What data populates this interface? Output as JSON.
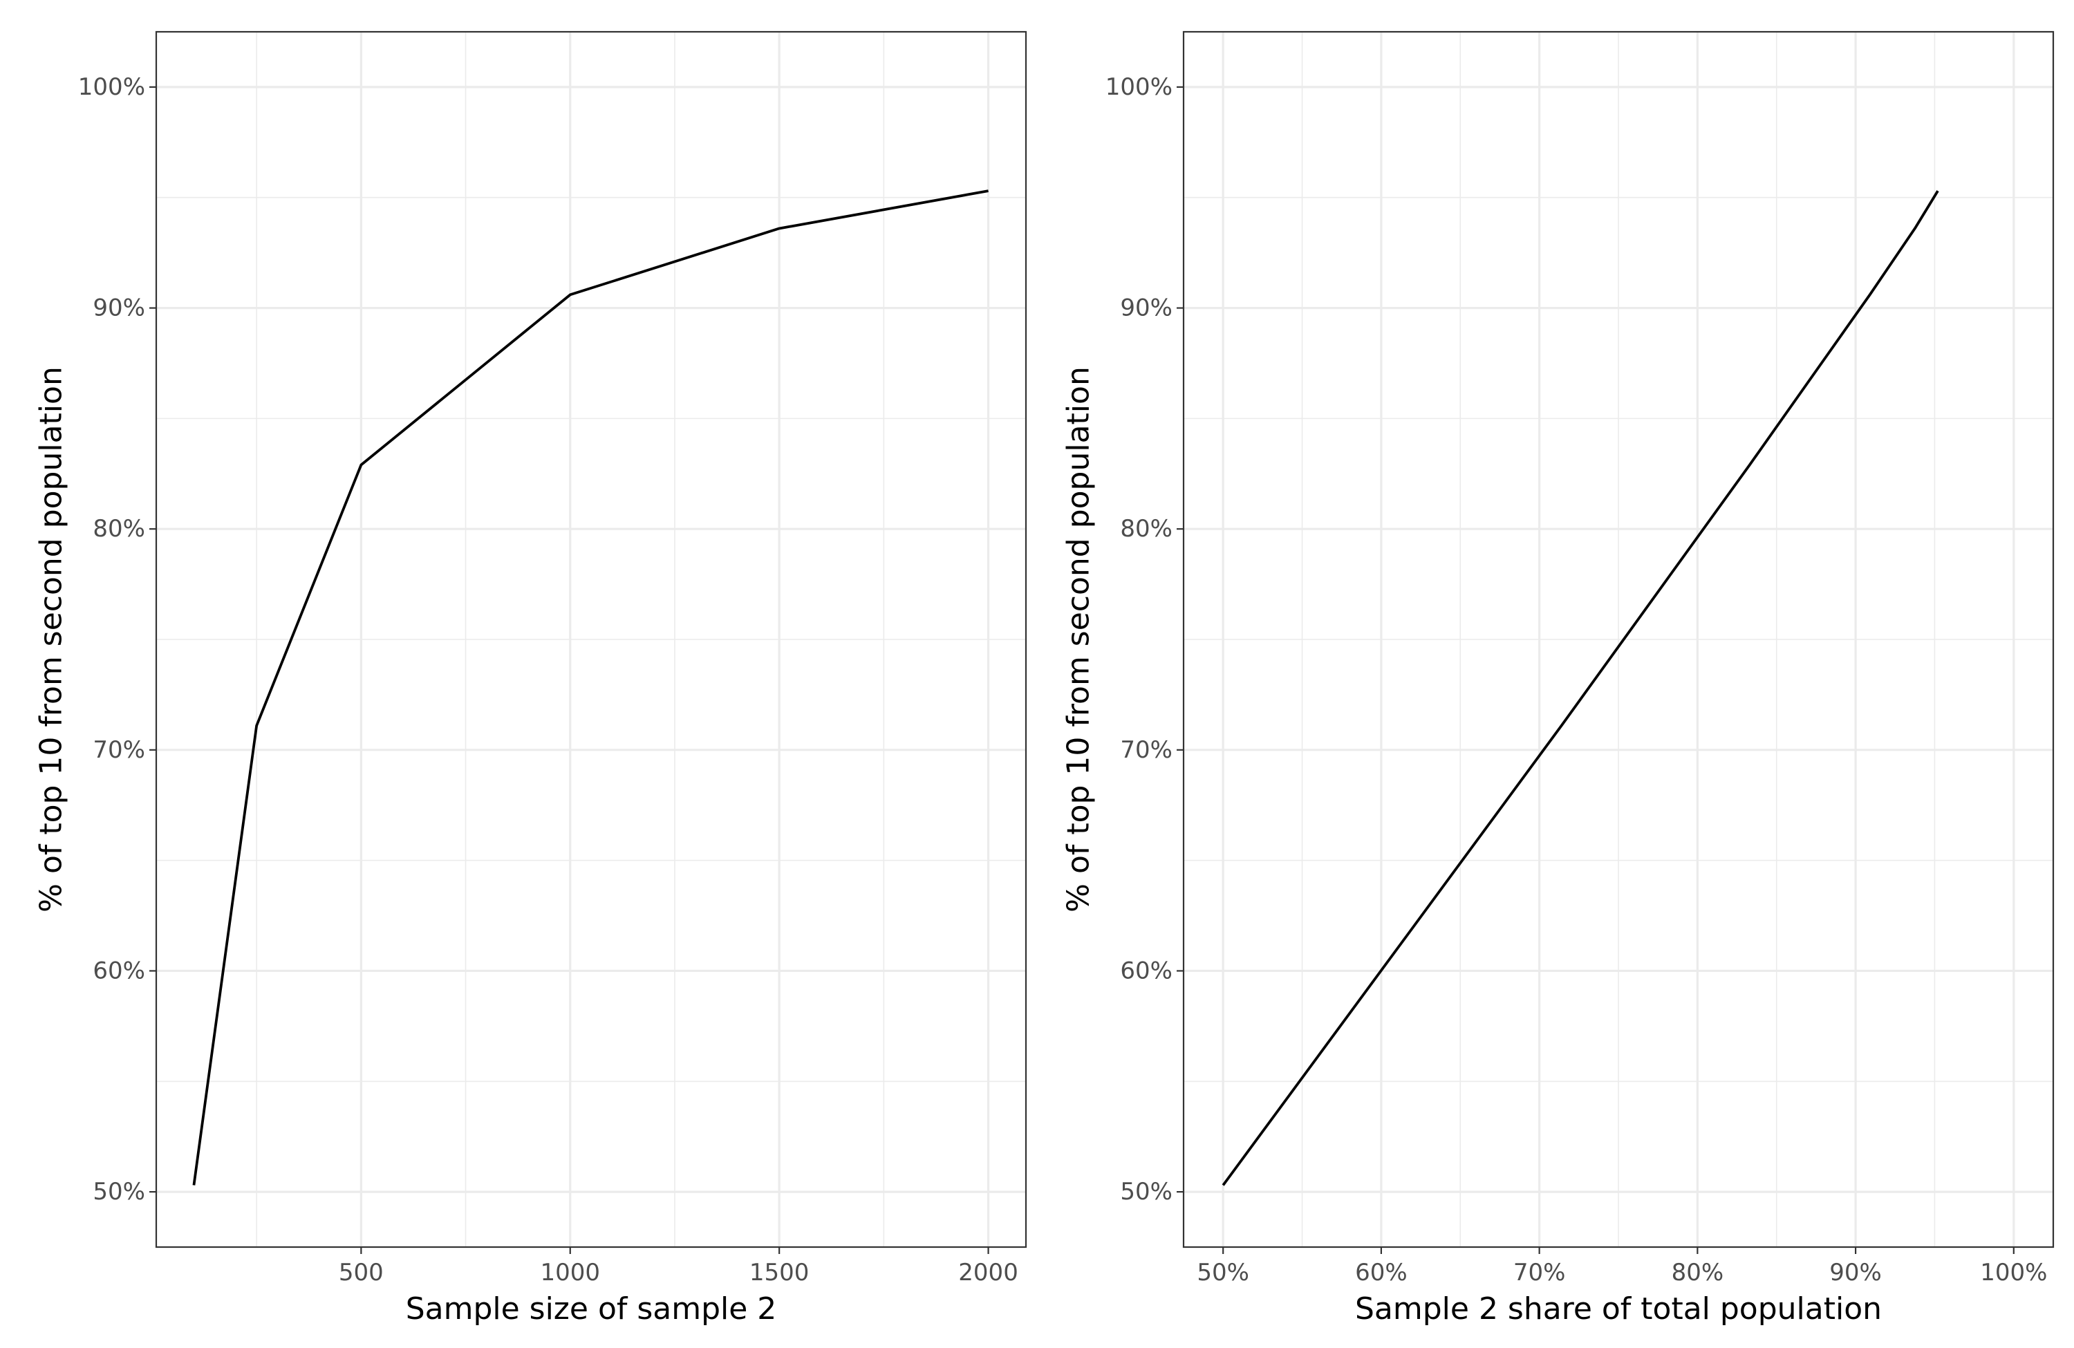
{
  "chart_data": [
    {
      "type": "line",
      "xlabel": "Sample size of sample 2",
      "ylabel": "% of top 10 from second population",
      "xlim": [
        10,
        2090
      ],
      "ylim": [
        47.5,
        102.5
      ],
      "x_major_ticks": [
        500,
        1000,
        1500,
        2000
      ],
      "x_minor_ticks": [
        250,
        750,
        1250,
        1750
      ],
      "x_tick_labels": [
        "500",
        "1000",
        "1500",
        "2000"
      ],
      "y_major_ticks": [
        50,
        60,
        70,
        80,
        90,
        100
      ],
      "y_minor_ticks": [
        55,
        65,
        75,
        85,
        95
      ],
      "y_tick_labels": [
        "50%",
        "60%",
        "70%",
        "80%",
        "90%",
        "100%"
      ],
      "grid": true,
      "series": [
        {
          "x": [
            100,
            250,
            500,
            1000,
            1500,
            2000
          ],
          "values": [
            50.3,
            71.1,
            82.9,
            90.6,
            93.6,
            95.3
          ]
        }
      ]
    },
    {
      "type": "line",
      "xlabel": "Sample 2 share of total population",
      "ylabel": "% of top 10 from second population",
      "xlim": [
        47.5,
        102.5
      ],
      "ylim": [
        47.5,
        102.5
      ],
      "x_major_ticks": [
        50,
        60,
        70,
        80,
        90,
        100
      ],
      "x_minor_ticks": [
        55,
        65,
        75,
        85,
        95
      ],
      "x_tick_labels": [
        "50%",
        "60%",
        "70%",
        "80%",
        "90%",
        "100%"
      ],
      "y_major_ticks": [
        50,
        60,
        70,
        80,
        90,
        100
      ],
      "y_minor_ticks": [
        55,
        65,
        75,
        85,
        95
      ],
      "y_tick_labels": [
        "50%",
        "60%",
        "70%",
        "80%",
        "90%",
        "100%"
      ],
      "grid": true,
      "series": [
        {
          "x": [
            50,
            71.4,
            83.3,
            90.9,
            93.75,
            95.2
          ],
          "values": [
            50.3,
            71.1,
            82.9,
            90.6,
            93.6,
            95.3
          ]
        }
      ]
    }
  ]
}
